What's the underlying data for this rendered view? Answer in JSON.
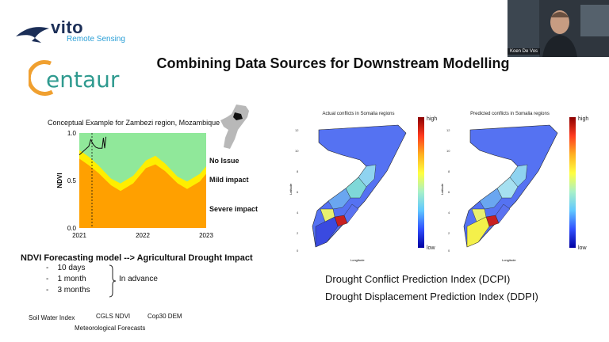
{
  "header": {
    "vito_name": "vito",
    "vito_sub": "Remote Sensing",
    "centaur": "entaur",
    "title": "Combining Data Sources for Downstream Modelling"
  },
  "webcam": {
    "presenter": "Koen De Vos"
  },
  "ndvi_panel": {
    "caption": "Conceptual Example for Zambezi region, Mozambique",
    "impacts": [
      "No Issue",
      "Mild impact",
      "Severe impact"
    ],
    "colors": {
      "no_issue": "#90e89a",
      "mild": "#ffee00",
      "severe": "#ffa000"
    },
    "heading": "NDVI Forecasting model --> Agricultural Drought Impact",
    "lead_times": [
      "10 days",
      "1 month",
      "3 months"
    ],
    "lead_note": "In advance"
  },
  "chart_data": {
    "type": "area",
    "ylabel": "NDVI",
    "ylim": [
      0.0,
      1.0
    ],
    "y_ticks": [
      "0.0",
      "0.5",
      "1.0"
    ],
    "x_ticks": [
      "2021",
      "2022",
      "2023"
    ],
    "severe_upper": [
      [
        2021.0,
        0.73
      ],
      [
        2021.15,
        0.66
      ],
      [
        2021.3,
        0.58
      ],
      [
        2021.5,
        0.45
      ],
      [
        2021.65,
        0.39
      ],
      [
        2021.85,
        0.47
      ],
      [
        2022.05,
        0.63
      ],
      [
        2022.2,
        0.67
      ],
      [
        2022.35,
        0.6
      ],
      [
        2022.55,
        0.47
      ],
      [
        2022.7,
        0.41
      ],
      [
        2022.9,
        0.49
      ],
      [
        2023.0,
        0.57
      ]
    ],
    "mild_upper": [
      [
        2021.0,
        0.82
      ],
      [
        2021.15,
        0.75
      ],
      [
        2021.3,
        0.66
      ],
      [
        2021.5,
        0.52
      ],
      [
        2021.65,
        0.47
      ],
      [
        2021.85,
        0.55
      ],
      [
        2022.05,
        0.71
      ],
      [
        2022.2,
        0.76
      ],
      [
        2022.35,
        0.68
      ],
      [
        2022.55,
        0.54
      ],
      [
        2022.7,
        0.49
      ],
      [
        2022.9,
        0.57
      ],
      [
        2023.0,
        0.65
      ]
    ],
    "observed": [
      [
        2021.0,
        0.77
      ],
      [
        2021.05,
        0.8
      ],
      [
        2021.1,
        0.83
      ],
      [
        2021.15,
        0.86
      ],
      [
        2021.18,
        0.93
      ],
      [
        2021.22,
        0.88
      ],
      [
        2021.26,
        0.85
      ],
      [
        2021.3,
        0.84
      ],
      [
        2021.36,
        0.84
      ],
      [
        2021.38,
        0.95
      ],
      [
        2021.4,
        0.84
      ],
      [
        2021.42,
        0.96
      ]
    ],
    "forecast_line_x": 2021.2
  },
  "sources": [
    "Soil Water Index",
    "CGLS NDVI",
    "Cop30 DEM",
    "Meteorological Forecasts"
  ],
  "maps": {
    "actual_title": "Actual conflicts in Somalia regions",
    "predicted_title": "Predicted conflicts in Somalia regions",
    "legend_high": "high",
    "legend_low": "low",
    "xlabel": "Longitude",
    "ylabel": "Latitude"
  },
  "indices": {
    "dcpi": "Drought Conflict Prediction Index (DCPI)",
    "ddpi": "Drought Displacement Prediction Index (DDPI)"
  }
}
